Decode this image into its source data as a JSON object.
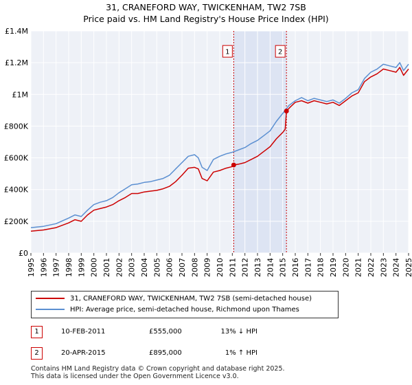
{
  "title": "31, CRANEFORD WAY, TWICKENHAM, TW2 7SB",
  "subtitle": "Price paid vs. HM Land Registry's House Price Index (HPI)",
  "chart_data": {
    "type": "line",
    "title": "31, CRANEFORD WAY, TWICKENHAM, TW2 7SB",
    "xlabel": "",
    "ylabel": "",
    "xlim": [
      1995,
      2025
    ],
    "ylim": [
      0,
      1400000
    ],
    "grid": true,
    "y_ticks": [
      0,
      200000,
      400000,
      600000,
      800000,
      1000000,
      1200000,
      1400000
    ],
    "y_tick_labels": [
      "£0",
      "£200K",
      "£400K",
      "£600K",
      "£800K",
      "£1M",
      "£1.2M",
      "£1.4M"
    ],
    "x_ticks": [
      "1995",
      "1996",
      "1997",
      "1998",
      "1999",
      "2000",
      "2001",
      "2002",
      "2003",
      "2004",
      "2005",
      "2006",
      "2007",
      "2008",
      "2009",
      "2010",
      "2011",
      "2012",
      "2013",
      "2014",
      "2015",
      "2016",
      "2017",
      "2018",
      "2019",
      "2020",
      "2021",
      "2022",
      "2023",
      "2024",
      "2025"
    ],
    "shaded_region": {
      "from": 2011.11,
      "to": 2015.3
    },
    "series": [
      {
        "name": "31, CRANEFORD WAY, TWICKENHAM, TW2 7SB (semi-detached house)",
        "color": "#cc0000",
        "x": [
          1995.0,
          1996.0,
          1997.0,
          1998.0,
          1998.5,
          1999.0,
          1999.5,
          2000.0,
          2000.5,
          2001.0,
          2001.5,
          2002.0,
          2002.5,
          2003.0,
          2003.5,
          2004.0,
          2004.5,
          2005.0,
          2005.5,
          2006.0,
          2006.5,
          2007.0,
          2007.5,
          2008.0,
          2008.3,
          2008.6,
          2009.0,
          2009.5,
          2010.0,
          2010.5,
          2011.0,
          2011.11,
          2011.5,
          2012.0,
          2012.5,
          2013.0,
          2013.5,
          2014.0,
          2014.5,
          2015.0,
          2015.2,
          2015.3,
          2015.6,
          2016.0,
          2016.5,
          2017.0,
          2017.5,
          2018.0,
          2018.5,
          2019.0,
          2019.5,
          2020.0,
          2020.5,
          2021.0,
          2021.5,
          2022.0,
          2022.5,
          2023.0,
          2023.5,
          2024.0,
          2024.3,
          2024.6,
          2025.0
        ],
        "y": [
          138000,
          145000,
          160000,
          190000,
          210000,
          200000,
          240000,
          270000,
          280000,
          290000,
          305000,
          330000,
          350000,
          375000,
          375000,
          385000,
          390000,
          395000,
          405000,
          420000,
          450000,
          490000,
          535000,
          540000,
          530000,
          470000,
          455000,
          510000,
          520000,
          535000,
          545000,
          555000,
          560000,
          570000,
          590000,
          610000,
          640000,
          670000,
          720000,
          760000,
          780000,
          895000,
          920000,
          950000,
          960000,
          945000,
          960000,
          950000,
          940000,
          950000,
          930000,
          960000,
          990000,
          1010000,
          1080000,
          1110000,
          1130000,
          1160000,
          1150000,
          1140000,
          1170000,
          1120000,
          1160000
        ]
      },
      {
        "name": "HPI: Average price, semi-detached house, Richmond upon Thames",
        "color": "#5b8fd1",
        "x": [
          1995.0,
          1996.0,
          1997.0,
          1998.0,
          1998.5,
          1999.0,
          1999.5,
          2000.0,
          2000.5,
          2001.0,
          2001.5,
          2002.0,
          2002.5,
          2003.0,
          2003.5,
          2004.0,
          2004.5,
          2005.0,
          2005.5,
          2006.0,
          2006.5,
          2007.0,
          2007.5,
          2008.0,
          2008.3,
          2008.6,
          2009.0,
          2009.5,
          2010.0,
          2010.5,
          2011.0,
          2011.5,
          2012.0,
          2012.5,
          2013.0,
          2013.5,
          2014.0,
          2014.5,
          2015.0,
          2015.2,
          2015.5,
          2016.0,
          2016.5,
          2017.0,
          2017.5,
          2018.0,
          2018.5,
          2019.0,
          2019.5,
          2020.0,
          2020.5,
          2021.0,
          2021.5,
          2022.0,
          2022.5,
          2023.0,
          2023.5,
          2024.0,
          2024.3,
          2024.6,
          2025.0
        ],
        "y": [
          160000,
          168000,
          185000,
          220000,
          240000,
          230000,
          270000,
          305000,
          320000,
          330000,
          350000,
          380000,
          405000,
          430000,
          435000,
          445000,
          450000,
          460000,
          470000,
          490000,
          530000,
          570000,
          610000,
          620000,
          600000,
          540000,
          520000,
          590000,
          610000,
          625000,
          635000,
          650000,
          665000,
          690000,
          710000,
          740000,
          770000,
          830000,
          880000,
          900000,
          930000,
          960000,
          980000,
          960000,
          975000,
          965000,
          955000,
          965000,
          945000,
          975000,
          1010000,
          1030000,
          1100000,
          1140000,
          1160000,
          1190000,
          1180000,
          1170000,
          1200000,
          1150000,
          1190000
        ]
      }
    ],
    "annotations": [
      {
        "label": "1",
        "x": 2011.11,
        "y": 555000,
        "color": "#cc0000"
      },
      {
        "label": "2",
        "x": 2015.3,
        "y": 895000,
        "color": "#cc0000"
      }
    ]
  },
  "legend": {
    "items": [
      {
        "label": "31, CRANEFORD WAY, TWICKENHAM, TW2 7SB (semi-detached house)",
        "color": "#cc0000"
      },
      {
        "label": "HPI: Average price, semi-detached house, Richmond upon Thames",
        "color": "#5b8fd1"
      }
    ]
  },
  "transactions": [
    {
      "num": "1",
      "date": "10-FEB-2011",
      "price": "£555,000",
      "hpi": "13% ↓ HPI"
    },
    {
      "num": "2",
      "date": "20-APR-2015",
      "price": "£895,000",
      "hpi": "1% ↑ HPI"
    }
  ],
  "footer": {
    "line1": "Contains HM Land Registry data © Crown copyright and database right 2025.",
    "line2": "This data is licensed under the Open Government Licence v3.0."
  }
}
